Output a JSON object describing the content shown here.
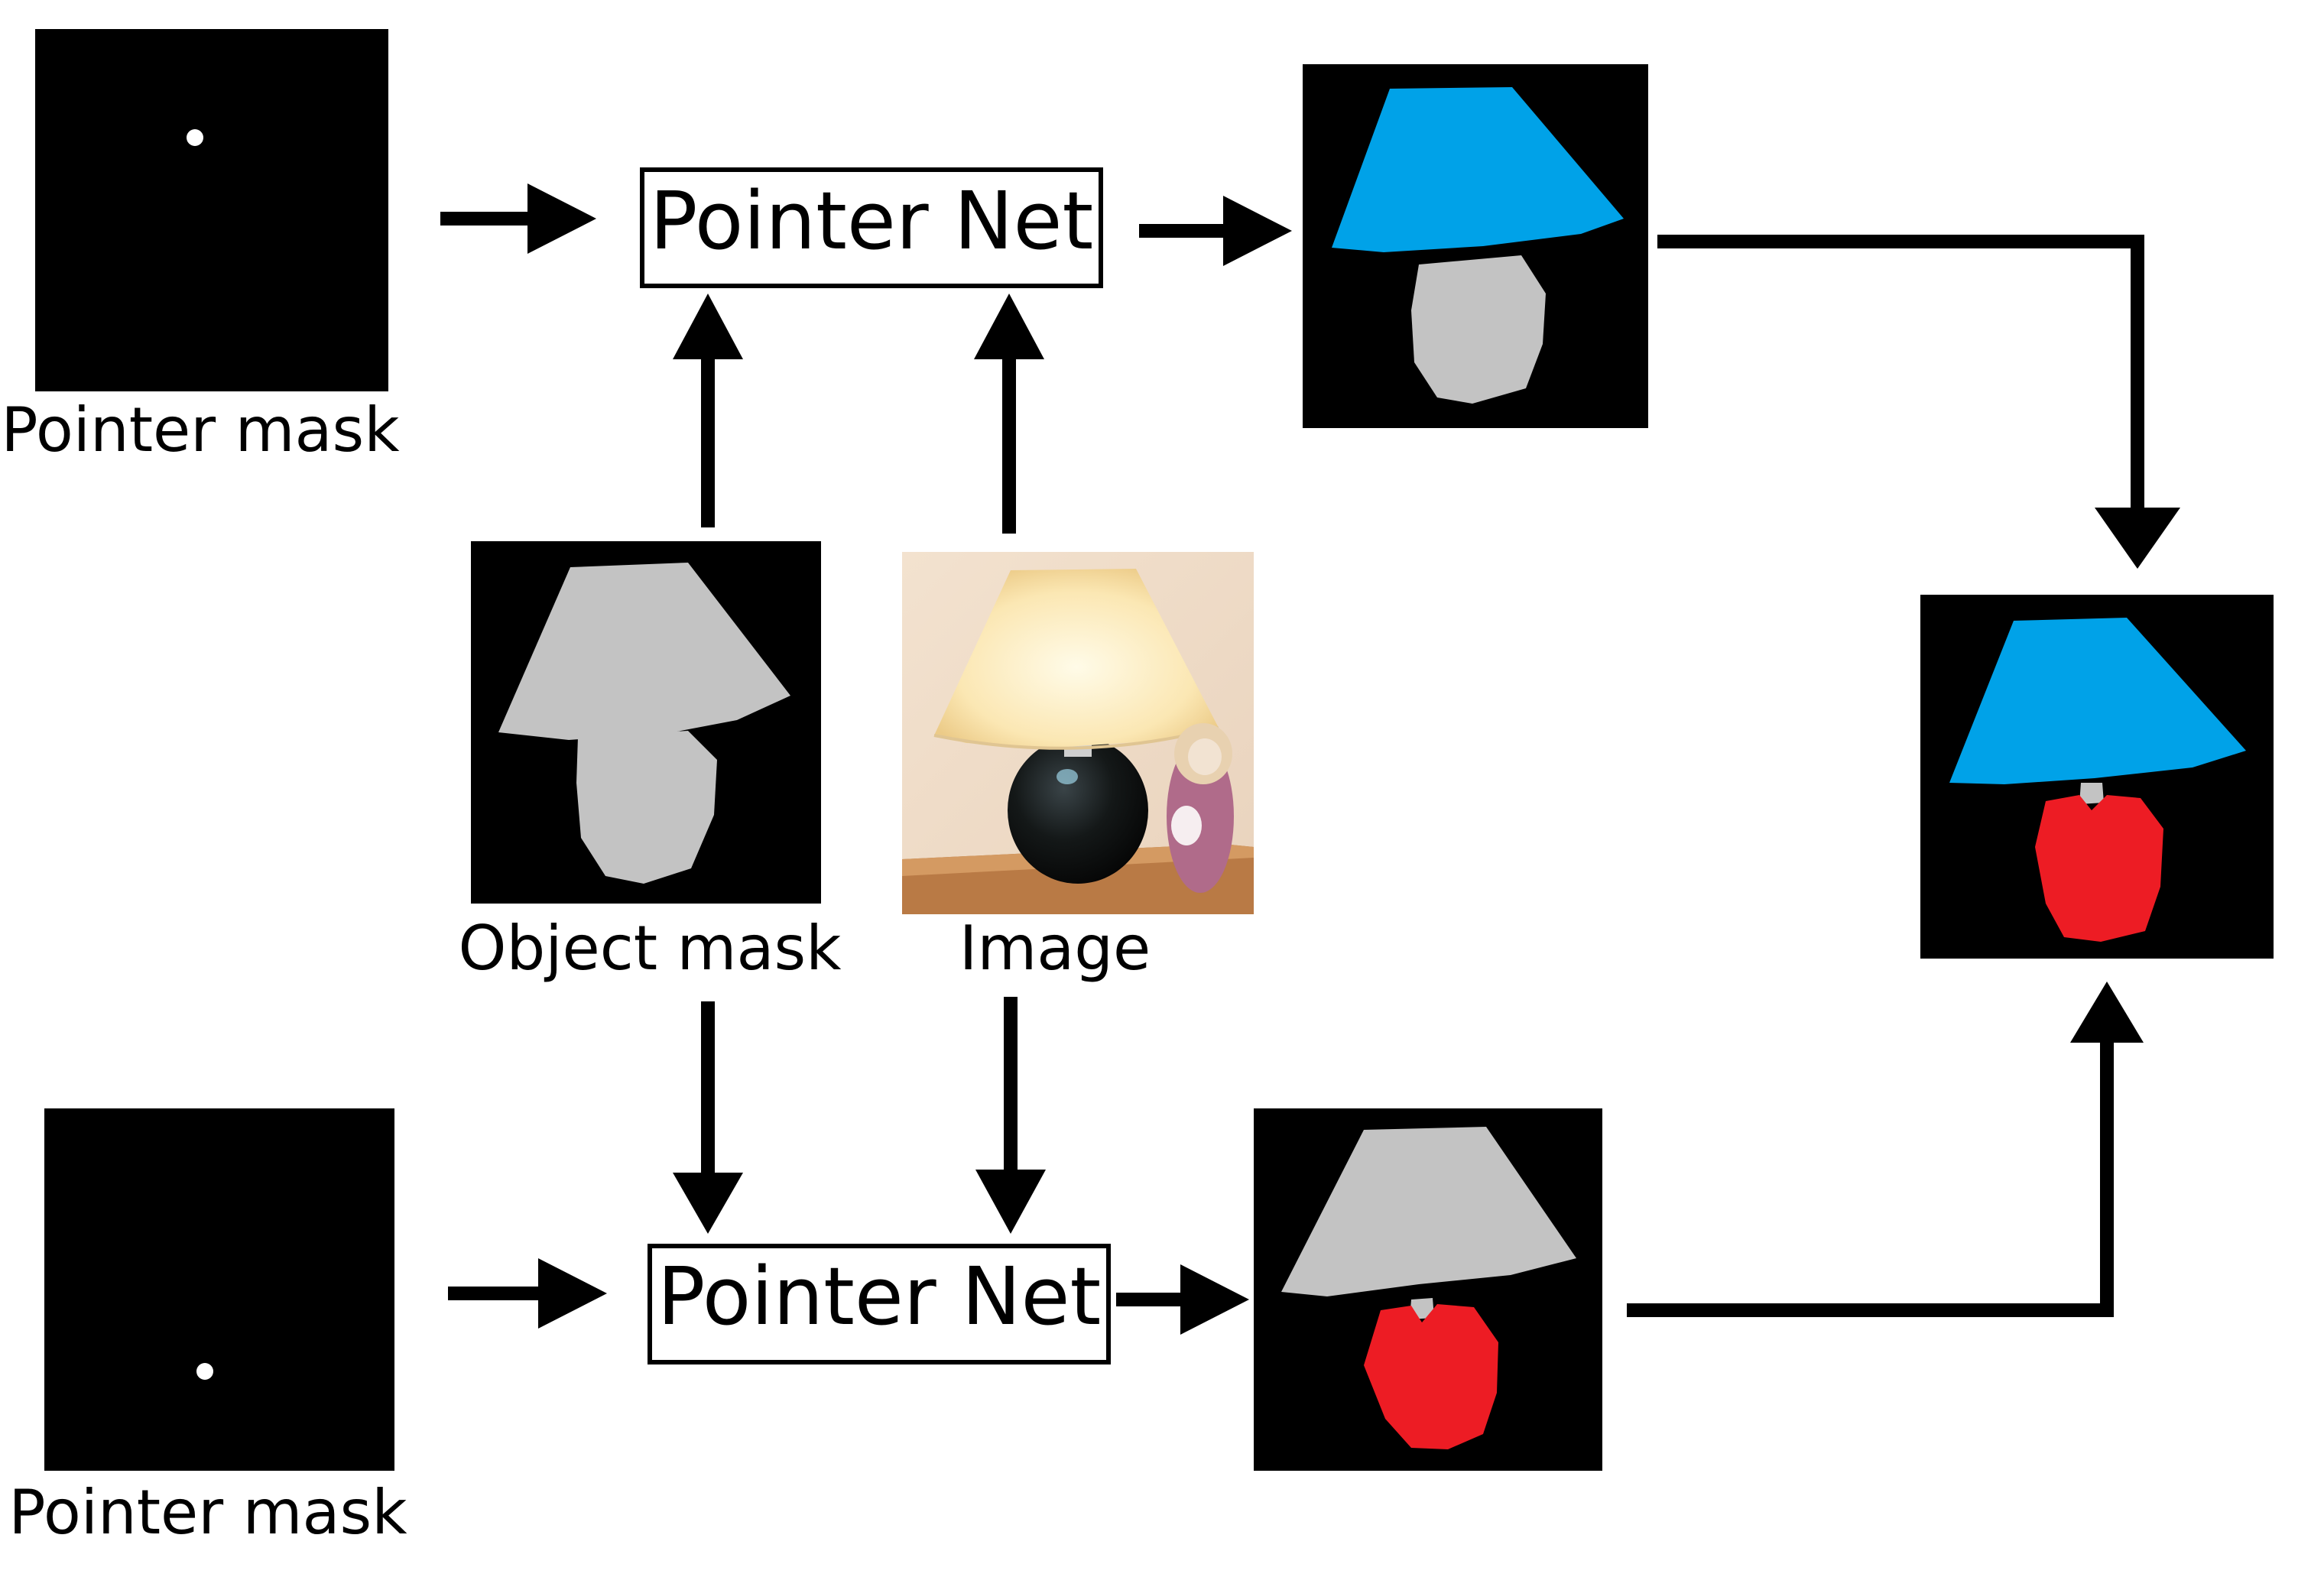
{
  "labels": {
    "pointer_mask_top": "Pointer mask",
    "pointer_mask_bottom": "Pointer mask",
    "object_mask": "Object mask",
    "image": "Image"
  },
  "nets": {
    "top": "Pointer Net",
    "bottom": "Pointer Net"
  },
  "colors": {
    "background": "#ffffff",
    "mask_bg": "#000000",
    "object_gray": "#c3c3c3",
    "shade_blue": "#00a2e8",
    "base_red": "#ed1c24",
    "pointer_dot": "#ffffff",
    "arrow": "#000000"
  }
}
